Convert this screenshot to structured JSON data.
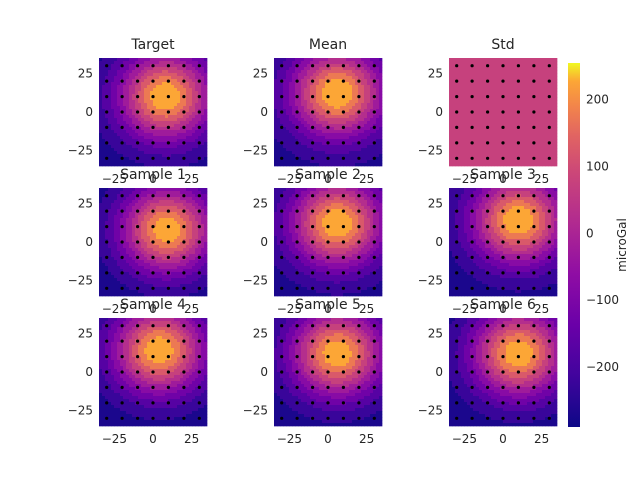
{
  "chart_data": {
    "type": "heatmap",
    "xlim": [
      -35,
      35
    ],
    "ylim": [
      -35,
      35
    ],
    "xticks": [
      "−25",
      "0",
      "25"
    ],
    "yticks": [
      "25",
      "0",
      "−25"
    ],
    "colorbar": {
      "label": "microGal",
      "colormap": "plasma",
      "range": [
        -290,
        255
      ],
      "ticks": [
        "200",
        "100",
        "0",
        "−100",
        "−200"
      ]
    },
    "panels": [
      {
        "title": "Target",
        "kind": "field",
        "peak": 250,
        "cx": 8,
        "cy": 10,
        "text_x": "−25    0    25"
      },
      {
        "title": "Mean",
        "kind": "field",
        "peak": 255,
        "cx": 6,
        "cy": 12,
        "text_x": "−25    0    25"
      },
      {
        "title": "Std",
        "kind": "flat",
        "value": 60,
        "text_x": "−25    0    25"
      },
      {
        "title": "Sample 1",
        "kind": "field",
        "peak": 240,
        "cx": 9,
        "cy": 8,
        "text_x": "−25    0    25"
      },
      {
        "title": "Sample 2",
        "kind": "field",
        "peak": 250,
        "cx": 6,
        "cy": 12,
        "text_x": "−25    0    25"
      },
      {
        "title": "Sample 3",
        "kind": "field",
        "peak": 250,
        "cx": 10,
        "cy": 14,
        "text_x": "−25    0    25"
      },
      {
        "title": "Sample 4",
        "kind": "field",
        "peak": 245,
        "cx": 4,
        "cy": 14,
        "text_x": "−25    0    25"
      },
      {
        "title": "Sample 5",
        "kind": "field",
        "peak": 245,
        "cx": 6,
        "cy": 12,
        "text_x": "−25    0    25"
      },
      {
        "title": "Sample 6",
        "kind": "field",
        "peak": 245,
        "cx": 10,
        "cy": 12,
        "text_x": "−25    0    25"
      }
    ],
    "observation_grid": [
      -30,
      -20,
      -10,
      0,
      10,
      20,
      30
    ]
  }
}
